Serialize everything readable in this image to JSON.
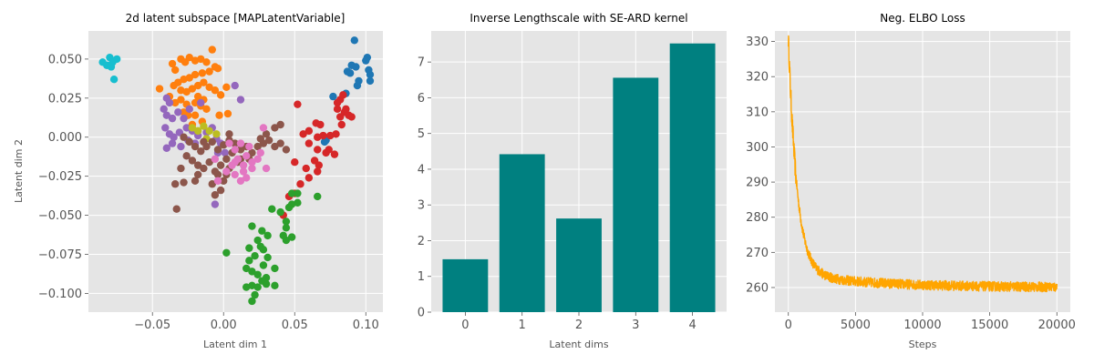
{
  "chart_data": [
    {
      "type": "scatter",
      "title": "2d latent subspace [MAPLatentVariable]",
      "xlabel": "Latent dim 1",
      "ylabel": "Latent dim 2",
      "xlim": [
        -0.095,
        0.112
      ],
      "ylim": [
        -0.112,
        0.068
      ],
      "xticks": [
        "−0.05",
        "0.00",
        "0.05",
        "0.10"
      ],
      "yticks": [
        "−0.100",
        "−0.075",
        "−0.050",
        "−0.025",
        "0.000",
        "0.025",
        "0.050"
      ],
      "grid": true,
      "series": [
        {
          "color": "#17becf",
          "points": [
            [
              -0.085,
              0.048
            ],
            [
              -0.082,
              0.046
            ],
            [
              -0.08,
              0.051
            ],
            [
              -0.079,
              0.045
            ],
            [
              -0.078,
              0.048
            ],
            [
              -0.075,
              0.05
            ],
            [
              -0.077,
              0.037
            ]
          ]
        },
        {
          "color": "#1f77b4",
          "points": [
            [
              0.092,
              0.062
            ],
            [
              0.101,
              0.051
            ],
            [
              0.1,
              0.049
            ],
            [
              0.09,
              0.046
            ],
            [
              0.093,
              0.045
            ],
            [
              0.087,
              0.042
            ],
            [
              0.089,
              0.041
            ],
            [
              0.102,
              0.043
            ],
            [
              0.103,
              0.04
            ],
            [
              0.095,
              0.036
            ],
            [
              0.103,
              0.036
            ],
            [
              0.094,
              0.033
            ],
            [
              0.086,
              0.028
            ],
            [
              0.077,
              0.026
            ],
            [
              0.071,
              -0.003
            ],
            [
              0.072,
              -0.002
            ]
          ]
        },
        {
          "color": "#ff7f0e",
          "points": [
            [
              -0.036,
              0.047
            ],
            [
              -0.034,
              0.043
            ],
            [
              -0.03,
              0.05
            ],
            [
              -0.027,
              0.048
            ],
            [
              -0.024,
              0.051
            ],
            [
              -0.02,
              0.049
            ],
            [
              -0.016,
              0.05
            ],
            [
              -0.012,
              0.048
            ],
            [
              -0.008,
              0.056
            ],
            [
              -0.006,
              0.045
            ],
            [
              -0.004,
              0.044
            ],
            [
              -0.01,
              0.042
            ],
            [
              -0.015,
              0.041
            ],
            [
              -0.02,
              0.04
            ],
            [
              -0.024,
              0.038
            ],
            [
              -0.028,
              0.037
            ],
            [
              -0.032,
              0.035
            ],
            [
              -0.035,
              0.033
            ],
            [
              -0.03,
              0.03
            ],
            [
              -0.026,
              0.029
            ],
            [
              -0.022,
              0.031
            ],
            [
              -0.018,
              0.033
            ],
            [
              -0.014,
              0.035
            ],
            [
              -0.01,
              0.032
            ],
            [
              -0.006,
              0.03
            ],
            [
              -0.002,
              0.027
            ],
            [
              -0.03,
              0.024
            ],
            [
              -0.026,
              0.021
            ],
            [
              -0.02,
              0.022
            ],
            [
              -0.016,
              0.02
            ],
            [
              -0.012,
              0.018
            ],
            [
              -0.02,
              0.014
            ],
            [
              -0.025,
              0.014
            ],
            [
              -0.015,
              0.01
            ],
            [
              -0.045,
              0.031
            ],
            [
              -0.038,
              0.026
            ],
            [
              -0.034,
              0.022
            ],
            [
              0.002,
              0.032
            ],
            [
              -0.003,
              0.014
            ],
            [
              0.003,
              0.015
            ],
            [
              -0.018,
              0.026
            ],
            [
              -0.014,
              0.024
            ],
            [
              -0.028,
              0.016
            ],
            [
              -0.022,
              0.008
            ]
          ]
        },
        {
          "color": "#9467bd",
          "points": [
            [
              -0.04,
              0.025
            ],
            [
              -0.038,
              0.022
            ],
            [
              -0.042,
              0.018
            ],
            [
              -0.04,
              0.014
            ],
            [
              -0.036,
              0.012
            ],
            [
              -0.032,
              0.016
            ],
            [
              -0.028,
              0.012
            ],
            [
              -0.041,
              0.006
            ],
            [
              -0.038,
              0.002
            ],
            [
              -0.035,
              0.0
            ],
            [
              -0.031,
              0.003
            ],
            [
              -0.026,
              0.006
            ],
            [
              -0.022,
              0.004
            ],
            [
              -0.018,
              0.001
            ],
            [
              -0.025,
              -0.002
            ],
            [
              -0.03,
              -0.006
            ],
            [
              -0.036,
              -0.004
            ],
            [
              -0.04,
              -0.007
            ],
            [
              -0.02,
              -0.004
            ],
            [
              -0.012,
              0.003
            ],
            [
              -0.008,
              0.006
            ],
            [
              -0.005,
              -0.001
            ],
            [
              -0.002,
              -0.004
            ],
            [
              0.012,
              0.024
            ],
            [
              0.008,
              0.033
            ],
            [
              0.001,
              -0.01
            ],
            [
              -0.006,
              -0.043
            ],
            [
              -0.016,
              0.022
            ],
            [
              -0.024,
              0.018
            ],
            [
              -0.004,
              -0.01
            ]
          ]
        },
        {
          "color": "#bcbd22",
          "points": [
            [
              -0.022,
              0.006
            ],
            [
              -0.018,
              0.004
            ],
            [
              -0.014,
              0.007
            ],
            [
              -0.01,
              0.004
            ],
            [
              -0.005,
              0.002
            ],
            [
              -0.012,
              -0.001
            ]
          ]
        },
        {
          "color": "#8c564b",
          "points": [
            [
              -0.028,
              0.0
            ],
            [
              -0.024,
              -0.003
            ],
            [
              -0.02,
              -0.006
            ],
            [
              -0.016,
              -0.009
            ],
            [
              -0.012,
              -0.006
            ],
            [
              -0.008,
              -0.003
            ],
            [
              -0.004,
              -0.008
            ],
            [
              0.0,
              -0.005
            ],
            [
              0.004,
              -0.002
            ],
            [
              0.008,
              -0.004
            ],
            [
              0.012,
              -0.008
            ],
            [
              0.016,
              -0.006
            ],
            [
              0.02,
              -0.01
            ],
            [
              0.024,
              -0.006
            ],
            [
              0.028,
              -0.004
            ],
            [
              0.032,
              -0.002
            ],
            [
              0.036,
              -0.006
            ],
            [
              0.04,
              -0.004
            ],
            [
              0.044,
              -0.008
            ],
            [
              0.03,
              0.002
            ],
            [
              0.026,
              -0.001
            ],
            [
              -0.026,
              -0.012
            ],
            [
              -0.022,
              -0.015
            ],
            [
              -0.018,
              -0.018
            ],
            [
              -0.014,
              -0.02
            ],
            [
              -0.01,
              -0.016
            ],
            [
              -0.006,
              -0.022
            ],
            [
              -0.002,
              -0.018
            ],
            [
              0.002,
              -0.014
            ],
            [
              0.006,
              -0.01
            ],
            [
              -0.004,
              -0.024
            ],
            [
              0.0,
              -0.028
            ],
            [
              -0.008,
              -0.03
            ],
            [
              -0.03,
              -0.02
            ],
            [
              -0.034,
              -0.03
            ],
            [
              -0.028,
              -0.029
            ],
            [
              -0.02,
              -0.028
            ],
            [
              -0.002,
              -0.034
            ],
            [
              -0.006,
              -0.037
            ],
            [
              -0.033,
              -0.046
            ],
            [
              0.004,
              -0.02
            ],
            [
              0.01,
              -0.016
            ],
            [
              0.018,
              -0.014
            ],
            [
              0.036,
              0.006
            ],
            [
              0.04,
              0.008
            ],
            [
              0.004,
              0.002
            ],
            [
              -0.014,
              -0.003
            ],
            [
              0.012,
              -0.014
            ],
            [
              -0.018,
              -0.024
            ],
            [
              0.002,
              -0.024
            ]
          ]
        },
        {
          "color": "#e377c2",
          "points": [
            [
              0.004,
              -0.004
            ],
            [
              0.008,
              -0.008
            ],
            [
              0.012,
              -0.004
            ],
            [
              0.016,
              -0.012
            ],
            [
              0.02,
              -0.016
            ],
            [
              0.01,
              -0.014
            ],
            [
              0.006,
              -0.018
            ],
            [
              0.014,
              -0.018
            ],
            [
              0.024,
              -0.014
            ],
            [
              0.018,
              -0.006
            ],
            [
              0.026,
              -0.01
            ],
            [
              0.002,
              -0.022
            ],
            [
              0.008,
              -0.024
            ],
            [
              0.012,
              -0.028
            ],
            [
              0.028,
              0.006
            ],
            [
              0.03,
              -0.02
            ],
            [
              0.014,
              -0.022
            ],
            [
              -0.004,
              -0.028
            ],
            [
              0.02,
              -0.02
            ],
            [
              0.008,
              -0.016
            ],
            [
              -0.006,
              -0.014
            ],
            [
              0.016,
              -0.026
            ]
          ]
        },
        {
          "color": "#d62728",
          "points": [
            [
              0.052,
              0.021
            ],
            [
              0.065,
              0.009
            ],
            [
              0.068,
              0.008
            ],
            [
              0.066,
              0.0
            ],
            [
              0.07,
              0.001
            ],
            [
              0.075,
              0.001
            ],
            [
              0.079,
              0.002
            ],
            [
              0.082,
              0.024
            ],
            [
              0.08,
              0.022
            ],
            [
              0.085,
              0.016
            ],
            [
              0.082,
              0.013
            ],
            [
              0.083,
              0.008
            ],
            [
              0.088,
              0.014
            ],
            [
              0.09,
              0.013
            ],
            [
              0.086,
              0.018
            ],
            [
              0.084,
              0.027
            ],
            [
              0.08,
              0.018
            ],
            [
              0.06,
              0.004
            ],
            [
              0.056,
              0.002
            ],
            [
              0.06,
              -0.004
            ],
            [
              0.066,
              -0.008
            ],
            [
              0.074,
              -0.008
            ],
            [
              0.078,
              -0.011
            ],
            [
              0.064,
              -0.015
            ],
            [
              0.058,
              -0.02
            ],
            [
              0.05,
              -0.016
            ],
            [
              0.066,
              -0.022
            ],
            [
              0.06,
              -0.026
            ],
            [
              0.054,
              -0.03
            ],
            [
              0.05,
              -0.036
            ],
            [
              0.046,
              -0.038
            ],
            [
              0.042,
              -0.05
            ],
            [
              0.072,
              -0.01
            ],
            [
              0.067,
              -0.018
            ]
          ]
        },
        {
          "color": "#2ca02c",
          "points": [
            [
              0.02,
              -0.057
            ],
            [
              0.024,
              -0.066
            ],
            [
              0.027,
              -0.06
            ],
            [
              0.031,
              -0.063
            ],
            [
              0.018,
              -0.071
            ],
            [
              0.026,
              -0.07
            ],
            [
              0.028,
              -0.072
            ],
            [
              0.022,
              -0.076
            ],
            [
              0.031,
              -0.077
            ],
            [
              0.018,
              -0.079
            ],
            [
              0.028,
              -0.082
            ],
            [
              0.016,
              -0.084
            ],
            [
              0.02,
              -0.086
            ],
            [
              0.024,
              -0.088
            ],
            [
              0.03,
              -0.09
            ],
            [
              0.036,
              -0.084
            ],
            [
              0.027,
              -0.092
            ],
            [
              0.016,
              -0.096
            ],
            [
              0.02,
              -0.095
            ],
            [
              0.024,
              -0.096
            ],
            [
              0.03,
              -0.094
            ],
            [
              0.036,
              -0.095
            ],
            [
              0.022,
              -0.101
            ],
            [
              0.02,
              -0.105
            ],
            [
              0.034,
              -0.046
            ],
            [
              0.044,
              -0.054
            ],
            [
              0.044,
              -0.058
            ],
            [
              0.044,
              -0.066
            ],
            [
              0.042,
              -0.063
            ],
            [
              0.048,
              -0.064
            ],
            [
              0.046,
              -0.045
            ],
            [
              0.048,
              -0.043
            ],
            [
              0.052,
              -0.036
            ],
            [
              0.048,
              -0.036
            ],
            [
              0.052,
              -0.042
            ],
            [
              0.066,
              -0.038
            ],
            [
              0.002,
              -0.074
            ],
            [
              0.04,
              -0.048
            ]
          ]
        }
      ]
    },
    {
      "type": "bar",
      "title": "Inverse Lengthscale with SE-ARD kernel",
      "xlabel": "Latent dims",
      "ylabel": "",
      "categories": [
        "0",
        "1",
        "2",
        "3",
        "4"
      ],
      "values": [
        1.48,
        4.42,
        2.62,
        6.56,
        7.52
      ],
      "ylim": [
        0,
        7.87
      ],
      "yticks": [
        "0",
        "1",
        "2",
        "3",
        "4",
        "5",
        "6",
        "7"
      ],
      "color": "#008080",
      "grid": true
    },
    {
      "type": "line",
      "title": "Neg. ELBO Loss",
      "xlabel": "Steps",
      "ylabel": "",
      "xlim": [
        -1000,
        21000
      ],
      "ylim": [
        253,
        333
      ],
      "xticks": [
        "0",
        "5000",
        "10000",
        "15000",
        "20000"
      ],
      "yticks": [
        "260",
        "270",
        "280",
        "290",
        "300",
        "310",
        "320",
        "330"
      ],
      "color": "#ffa500",
      "n_steps": 20000,
      "start_value": 331,
      "plateau_value": 260,
      "noise_amplitude": 1.4,
      "grid": true
    }
  ]
}
